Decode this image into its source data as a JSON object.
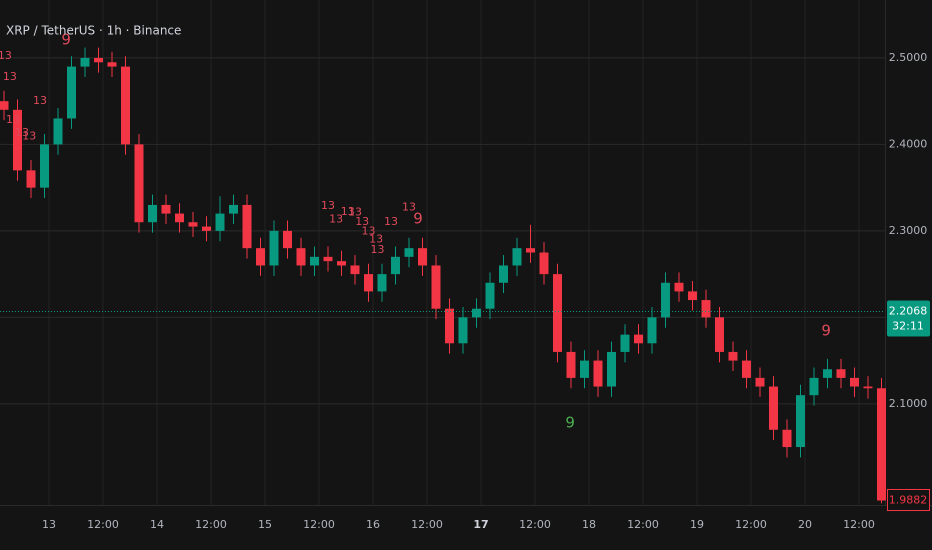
{
  "chart_data": {
    "type": "candlestick",
    "title": "XRP / TetherUS · 1h · Binance",
    "up_color": "#089981",
    "down_color": "#f23645",
    "grid": true,
    "xlim": [
      -10.89,
      185.78
    ],
    "ylim": [
      1.983,
      2.567
    ],
    "xticks": [
      {
        "value": 0,
        "label": "13"
      },
      {
        "value": 12,
        "label": "12:00"
      },
      {
        "value": 24,
        "label": "14"
      },
      {
        "value": 36,
        "label": "12:00"
      },
      {
        "value": 48,
        "label": "15"
      },
      {
        "value": 60,
        "label": "12:00"
      },
      {
        "value": 72,
        "label": "16"
      },
      {
        "value": 84,
        "label": "12:00"
      },
      {
        "value": 96,
        "label": "17"
      },
      {
        "value": 108,
        "label": "12:00"
      },
      {
        "value": 120,
        "label": "18"
      },
      {
        "value": 132,
        "label": "12:00"
      },
      {
        "value": 144,
        "label": "19"
      },
      {
        "value": 156,
        "label": "12:00"
      },
      {
        "value": 168,
        "label": "20"
      },
      {
        "value": 180,
        "label": "12:00"
      }
    ],
    "yticks": [
      {
        "value": 2.1,
        "label": "2.1000"
      },
      {
        "value": 2.2,
        "label": "2.2000"
      },
      {
        "value": 2.3,
        "label": "2.3000"
      },
      {
        "value": 2.4,
        "label": "2.4000"
      },
      {
        "value": 2.5,
        "label": "2.5000"
      }
    ],
    "x": [
      -10,
      -7,
      -4,
      -1,
      2,
      5,
      8,
      11,
      14,
      17,
      20,
      23,
      26,
      29,
      32,
      35,
      38,
      41,
      44,
      47,
      50,
      53,
      56,
      59,
      62,
      65,
      68,
      71,
      74,
      77,
      80,
      83,
      86,
      89,
      92,
      95,
      98,
      101,
      104,
      107,
      110,
      113,
      116,
      119,
      122,
      125,
      128,
      131,
      134,
      137,
      140,
      143,
      146,
      149,
      152,
      155,
      158,
      161,
      164,
      167,
      170,
      173,
      176,
      179,
      182,
      185
    ],
    "open": [
      2.45,
      2.44,
      2.37,
      2.35,
      2.4,
      2.43,
      2.49,
      2.5,
      2.495,
      2.49,
      2.4,
      2.31,
      2.33,
      2.32,
      2.31,
      2.305,
      2.3,
      2.32,
      2.33,
      2.28,
      2.26,
      2.3,
      2.28,
      2.26,
      2.27,
      2.265,
      2.26,
      2.25,
      2.23,
      2.25,
      2.27,
      2.28,
      2.26,
      2.21,
      2.17,
      2.2,
      2.21,
      2.24,
      2.26,
      2.28,
      2.275,
      2.25,
      2.16,
      2.13,
      2.15,
      2.12,
      2.16,
      2.18,
      2.17,
      2.2,
      2.24,
      2.23,
      2.22,
      2.2,
      2.16,
      2.15,
      2.13,
      2.12,
      2.07,
      2.05,
      2.11,
      2.13,
      2.14,
      2.13,
      2.12,
      2.118
    ],
    "high": [
      2.462,
      2.452,
      2.382,
      2.412,
      2.442,
      2.502,
      2.512,
      2.512,
      2.507,
      2.502,
      2.412,
      2.342,
      2.342,
      2.332,
      2.322,
      2.317,
      2.34,
      2.342,
      2.342,
      2.292,
      2.312,
      2.312,
      2.292,
      2.282,
      2.282,
      2.277,
      2.272,
      2.262,
      2.262,
      2.282,
      2.292,
      2.292,
      2.272,
      2.222,
      2.212,
      2.222,
      2.252,
      2.272,
      2.292,
      2.307,
      2.287,
      2.262,
      2.172,
      2.162,
      2.162,
      2.172,
      2.192,
      2.192,
      2.212,
      2.252,
      2.252,
      2.242,
      2.232,
      2.212,
      2.172,
      2.162,
      2.142,
      2.132,
      2.082,
      2.122,
      2.142,
      2.152,
      2.152,
      2.142,
      2.132,
      2.13
    ],
    "low": [
      2.428,
      2.358,
      2.338,
      2.338,
      2.388,
      2.418,
      2.478,
      2.483,
      2.478,
      2.388,
      2.298,
      2.298,
      2.308,
      2.298,
      2.293,
      2.288,
      2.288,
      2.308,
      2.268,
      2.248,
      2.248,
      2.268,
      2.248,
      2.248,
      2.253,
      2.248,
      2.238,
      2.218,
      2.218,
      2.238,
      2.258,
      2.248,
      2.198,
      2.158,
      2.158,
      2.188,
      2.198,
      2.228,
      2.248,
      2.263,
      2.238,
      2.148,
      2.118,
      2.118,
      2.108,
      2.108,
      2.148,
      2.158,
      2.158,
      2.188,
      2.218,
      2.208,
      2.188,
      2.148,
      2.138,
      2.118,
      2.108,
      2.058,
      2.038,
      2.038,
      2.098,
      2.118,
      2.118,
      2.108,
      2.106,
      1.985
    ],
    "close": [
      2.44,
      2.37,
      2.35,
      2.4,
      2.43,
      2.49,
      2.5,
      2.495,
      2.49,
      2.4,
      2.31,
      2.33,
      2.32,
      2.31,
      2.305,
      2.3,
      2.32,
      2.33,
      2.28,
      2.26,
      2.3,
      2.28,
      2.26,
      2.27,
      2.265,
      2.26,
      2.25,
      2.23,
      2.25,
      2.27,
      2.28,
      2.26,
      2.21,
      2.17,
      2.2,
      2.21,
      2.24,
      2.26,
      2.28,
      2.275,
      2.25,
      2.16,
      2.13,
      2.15,
      2.12,
      2.16,
      2.18,
      2.17,
      2.2,
      2.24,
      2.23,
      2.22,
      2.2,
      2.16,
      2.15,
      2.13,
      2.12,
      2.07,
      2.05,
      2.11,
      2.13,
      2.14,
      2.13,
      2.12,
      2.118,
      1.9882
    ],
    "price_lines": [
      {
        "value": 2.2068,
        "countdown": "32:11",
        "color": "#089981"
      },
      {
        "value": 1.9882,
        "color": "#f23645"
      }
    ],
    "annotations": [
      {
        "text": "9",
        "x": 3.8,
        "y": 2.521,
        "color": "#e04a5a"
      },
      {
        "text": "13",
        "x": -9.8,
        "y": 2.502,
        "color": "#e04a5a"
      },
      {
        "text": "13",
        "x": -8.7,
        "y": 2.478,
        "color": "#e04a5a"
      },
      {
        "text": "13",
        "x": -2,
        "y": 2.45,
        "color": "#e04a5a"
      },
      {
        "text": "13",
        "x": -8,
        "y": 2.428,
        "color": "#e04a5a"
      },
      {
        "text": "13",
        "x": -6,
        "y": 2.413,
        "color": "#e04a5a"
      },
      {
        "text": "13",
        "x": -4.4,
        "y": 2.409,
        "color": "#e04a5a"
      },
      {
        "text": "13",
        "x": 62,
        "y": 2.329,
        "color": "#e04a5a"
      },
      {
        "text": "13",
        "x": 63.8,
        "y": 2.313,
        "color": "#e04a5a"
      },
      {
        "text": "13",
        "x": 66.4,
        "y": 2.322,
        "color": "#e04a5a"
      },
      {
        "text": "13",
        "x": 68,
        "y": 2.321,
        "color": "#e04a5a"
      },
      {
        "text": "13",
        "x": 69.6,
        "y": 2.31,
        "color": "#e04a5a"
      },
      {
        "text": "13",
        "x": 71,
        "y": 2.299,
        "color": "#e04a5a"
      },
      {
        "text": "13",
        "x": 72.7,
        "y": 2.29,
        "color": "#e04a5a"
      },
      {
        "text": "13",
        "x": 73,
        "y": 2.278,
        "color": "#e04a5a"
      },
      {
        "text": "13",
        "x": 76,
        "y": 2.31,
        "color": "#e04a5a"
      },
      {
        "text": "13",
        "x": 80,
        "y": 2.327,
        "color": "#e04a5a"
      },
      {
        "text": "9",
        "x": 82,
        "y": 2.314,
        "color": "#e04a5a"
      },
      {
        "text": "9",
        "x": 172.7,
        "y": 2.184,
        "color": "#e04a5a"
      },
      {
        "text": "9",
        "x": 115.8,
        "y": 2.078,
        "color": "#4caf50"
      }
    ]
  }
}
